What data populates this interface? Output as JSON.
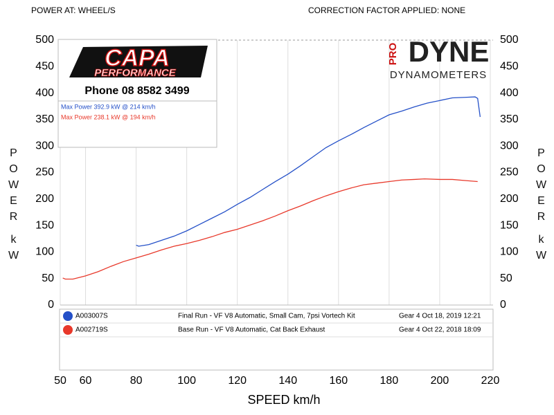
{
  "header": {
    "left": "POWER AT: WHEEL/S",
    "right": "CORRECTION FACTOR APPLIED: NONE"
  },
  "logo": {
    "name": "CAPA",
    "tagline": "PERFORMANCE",
    "phone": "Phone 08 8582 3499"
  },
  "brand": {
    "pro": "PRO",
    "dyne": "DYNE",
    "sub": "DYNAMOMETERS"
  },
  "chart_data": {
    "type": "line",
    "x_label": "SPEED km/h",
    "y_label": "POWER",
    "y_unit": "kW",
    "xlim": [
      50,
      220
    ],
    "xticks": [
      50,
      60,
      80,
      100,
      120,
      140,
      160,
      180,
      200,
      220
    ],
    "ylim": [
      0,
      500
    ],
    "yticks": [
      0,
      50,
      100,
      150,
      200,
      250,
      300,
      350,
      400,
      450,
      500
    ],
    "grid": true,
    "annotations": [
      "Max Power 392.9 kW @ 214 km/h",
      "Max Power 238.1 kW @ 194 km/h"
    ],
    "series": [
      {
        "name": "A003007S",
        "description": "Final Run - VF V8 Automatic, Small Cam, 7psi Vortech Kit",
        "info": "Gear 4 Oct 18, 2019 12:21",
        "color": "#2450c8",
        "x": [
          80,
          81,
          85,
          90,
          95,
          100,
          105,
          110,
          115,
          120,
          125,
          130,
          135,
          140,
          145,
          150,
          155,
          160,
          165,
          170,
          175,
          180,
          185,
          190,
          195,
          200,
          205,
          210,
          214,
          215,
          216
        ],
        "values": [
          113,
          111,
          114,
          122,
          130,
          140,
          152,
          164,
          176,
          190,
          203,
          218,
          233,
          247,
          263,
          280,
          297,
          310,
          322,
          335,
          347,
          359,
          366,
          374,
          381,
          386,
          391,
          392,
          392.9,
          390,
          355
        ]
      },
      {
        "name": "A002719S",
        "description": "Base Run - VF V8 Automatic, Cat Back Exhaust",
        "info": "Gear 4 Oct 22, 2018 18:09",
        "color": "#e8382a",
        "x": [
          51,
          52,
          55,
          60,
          65,
          70,
          75,
          80,
          85,
          90,
          95,
          100,
          105,
          110,
          115,
          120,
          125,
          130,
          135,
          140,
          145,
          150,
          155,
          160,
          165,
          170,
          175,
          180,
          185,
          190,
          194,
          200,
          205,
          210,
          215
        ],
        "values": [
          51,
          49,
          49,
          55,
          63,
          73,
          82,
          89,
          96,
          104,
          111,
          116,
          122,
          129,
          137,
          143,
          151,
          159,
          168,
          178,
          187,
          197,
          206,
          214,
          221,
          227,
          230,
          233,
          236,
          237,
          238.1,
          237,
          237,
          235,
          233
        ]
      }
    ]
  }
}
